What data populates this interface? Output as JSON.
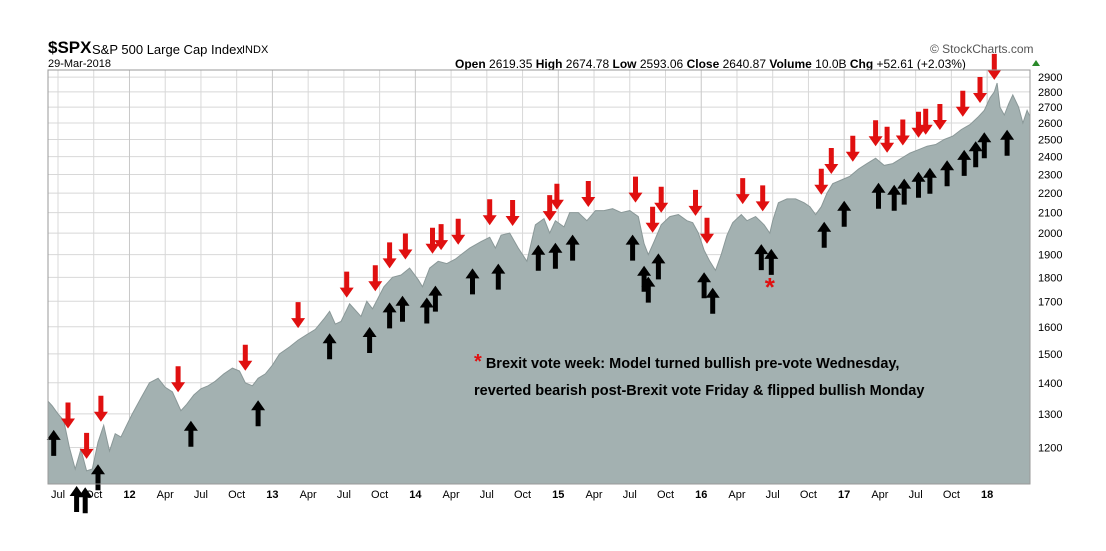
{
  "header": {
    "ticker": "$SPX",
    "name": "S&P 500 Large Cap Index",
    "exchange": "INDX",
    "date": "29-Mar-2018",
    "brand": "© StockCharts.com",
    "ohlc": {
      "open_label": "Open",
      "open": "2619.35",
      "high_label": "High",
      "high": "2674.78",
      "low_label": "Low",
      "low": "2593.06",
      "close_label": "Close",
      "close": "2640.87",
      "volume_label": "Volume",
      "volume": "10.0B",
      "chg_label": "Chg",
      "chg": "+52.61 (+2.03%)"
    }
  },
  "annotation": {
    "marker": "*",
    "line1": "Brexit vote week: Model turned bullish pre-vote Wednesday,",
    "line2": "reverted bearish post-Brexit vote Friday & flipped bullish Monday",
    "marker_date": 2016.48
  },
  "colors": {
    "area": "#a3b1b1",
    "area_line": "#8a9898",
    "sell_arrow": "#e01010",
    "buy_arrow": "#000000",
    "grid": "#d8d8d8",
    "asterisk": "#e01010"
  },
  "chart_data": {
    "type": "area",
    "title": "$SPX S&P 500 Large Cap Index INDX",
    "y_scale": "log",
    "ylim": [
      1100,
      2950
    ],
    "xlim": [
      2011.43,
      2018.3
    ],
    "grid": true,
    "y_ticks": [
      "1200",
      "1300",
      "1400",
      "1500",
      "1600",
      "1700",
      "1800",
      "1900",
      "2000",
      "2100",
      "2200",
      "2300",
      "2400",
      "2500",
      "2600",
      "2700",
      "2800",
      "2900"
    ],
    "x_ticks": [
      {
        "label": "Jul",
        "x": 2011.5
      },
      {
        "label": "Oct",
        "x": 2011.75
      },
      {
        "label": "12",
        "x": 2012.0
      },
      {
        "label": "Apr",
        "x": 2012.25
      },
      {
        "label": "Jul",
        "x": 2012.5
      },
      {
        "label": "Oct",
        "x": 2012.75
      },
      {
        "label": "13",
        "x": 2013.0
      },
      {
        "label": "Apr",
        "x": 2013.25
      },
      {
        "label": "Jul",
        "x": 2013.5
      },
      {
        "label": "Oct",
        "x": 2013.75
      },
      {
        "label": "14",
        "x": 2014.0
      },
      {
        "label": "Apr",
        "x": 2014.25
      },
      {
        "label": "Jul",
        "x": 2014.5
      },
      {
        "label": "Oct",
        "x": 2014.75
      },
      {
        "label": "15",
        "x": 2015.0
      },
      {
        "label": "Apr",
        "x": 2015.25
      },
      {
        "label": "Jul",
        "x": 2015.5
      },
      {
        "label": "Oct",
        "x": 2015.75
      },
      {
        "label": "16",
        "x": 2016.0
      },
      {
        "label": "Apr",
        "x": 2016.25
      },
      {
        "label": "Jul",
        "x": 2016.5
      },
      {
        "label": "Oct",
        "x": 2016.75
      },
      {
        "label": "17",
        "x": 2017.0
      },
      {
        "label": "Apr",
        "x": 2017.25
      },
      {
        "label": "Jul",
        "x": 2017.5
      },
      {
        "label": "Oct",
        "x": 2017.75
      },
      {
        "label": "18",
        "x": 2018.0
      }
    ],
    "bold_x_ticks": [
      "12",
      "13",
      "14",
      "15",
      "16",
      "17",
      "18"
    ],
    "series": [
      {
        "x": [
          2011.43,
          2011.46,
          2011.5,
          2011.54,
          2011.58,
          2011.62,
          2011.66,
          2011.7,
          2011.74,
          2011.78,
          2011.82,
          2011.86,
          2011.9,
          2011.94,
          2011.98,
          2012.02,
          2012.08,
          2012.14,
          2012.2,
          2012.25,
          2012.3,
          2012.36,
          2012.4,
          2012.45,
          2012.5,
          2012.55,
          2012.6,
          2012.66,
          2012.72,
          2012.77,
          2012.81,
          2012.86,
          2012.9,
          2012.95,
          2013.0,
          2013.05,
          2013.12,
          2013.18,
          2013.24,
          2013.3,
          2013.36,
          2013.4,
          2013.44,
          2013.48,
          2013.54,
          2013.62,
          2013.66,
          2013.7,
          2013.78,
          2013.84,
          2013.9,
          2013.96,
          2014.02,
          2014.05,
          2014.1,
          2014.16,
          2014.22,
          2014.28,
          2014.32,
          2014.38,
          2014.46,
          2014.52,
          2014.56,
          2014.6,
          2014.66,
          2014.72,
          2014.78,
          2014.84,
          2014.9,
          2014.94,
          2014.98,
          2015.04,
          2015.08,
          2015.14,
          2015.2,
          2015.26,
          2015.32,
          2015.38,
          2015.44,
          2015.5,
          2015.56,
          2015.6,
          2015.63,
          2015.67,
          2015.72,
          2015.78,
          2015.84,
          2015.9,
          2015.94,
          2015.98,
          2016.02,
          2016.06,
          2016.1,
          2016.14,
          2016.18,
          2016.22,
          2016.28,
          2016.32,
          2016.38,
          2016.44,
          2016.48,
          2016.5,
          2016.54,
          2016.6,
          2016.66,
          2016.72,
          2016.76,
          2016.8,
          2016.84,
          2016.88,
          2016.92,
          2016.98,
          2017.04,
          2017.1,
          2017.16,
          2017.22,
          2017.28,
          2017.34,
          2017.4,
          2017.46,
          2017.52,
          2017.58,
          2017.64,
          2017.7,
          2017.76,
          2017.82,
          2017.88,
          2017.94,
          2017.98,
          2018.02,
          2018.05,
          2018.07,
          2018.09,
          2018.12,
          2018.15,
          2018.18,
          2018.22,
          2018.25,
          2018.28,
          2018.3
        ],
        "values": [
          1340,
          1325,
          1300,
          1280,
          1200,
          1140,
          1195,
          1135,
          1140,
          1215,
          1265,
          1190,
          1240,
          1230,
          1265,
          1300,
          1350,
          1400,
          1415,
          1385,
          1370,
          1310,
          1330,
          1360,
          1380,
          1390,
          1405,
          1430,
          1450,
          1440,
          1400,
          1390,
          1415,
          1430,
          1460,
          1500,
          1525,
          1550,
          1570,
          1590,
          1630,
          1660,
          1610,
          1620,
          1690,
          1640,
          1700,
          1670,
          1760,
          1800,
          1810,
          1840,
          1790,
          1760,
          1840,
          1870,
          1860,
          1880,
          1900,
          1930,
          1960,
          1980,
          1930,
          1990,
          2000,
          1930,
          1870,
          2040,
          2070,
          2000,
          2060,
          2030,
          2100,
          2100,
          2060,
          2110,
          2110,
          2120,
          2100,
          2110,
          2080,
          1950,
          1900,
          1960,
          2040,
          2080,
          2090,
          2060,
          2050,
          2000,
          1920,
          1870,
          1830,
          1900,
          1990,
          2050,
          2090,
          2060,
          2080,
          2040,
          2000,
          2060,
          2150,
          2170,
          2170,
          2150,
          2130,
          2090,
          2130,
          2200,
          2250,
          2270,
          2290,
          2330,
          2360,
          2390,
          2350,
          2360,
          2390,
          2420,
          2440,
          2460,
          2470,
          2500,
          2520,
          2560,
          2590,
          2640,
          2680,
          2760,
          2800,
          2860,
          2700,
          2650,
          2720,
          2780,
          2700,
          2600,
          2680,
          2640
        ]
      }
    ],
    "sell_signals": [
      2011.57,
      2011.7,
      2011.8,
      2012.34,
      2012.81,
      2013.18,
      2013.52,
      2013.72,
      2013.82,
      2013.93,
      2014.12,
      2014.18,
      2014.3,
      2014.52,
      2014.68,
      2014.94,
      2014.99,
      2015.21,
      2015.54,
      2015.66,
      2015.72,
      2015.96,
      2016.04,
      2016.29,
      2016.43,
      2016.84,
      2016.91,
      2017.06,
      2017.22,
      2017.3,
      2017.41,
      2017.52,
      2017.57,
      2017.67,
      2017.83,
      2017.95,
      2018.05
    ],
    "buy_signals": [
      2011.47,
      2011.63,
      2011.69,
      2011.78,
      2012.43,
      2012.9,
      2013.4,
      2013.68,
      2013.82,
      2013.91,
      2014.08,
      2014.14,
      2014.4,
      2014.58,
      2014.86,
      2014.98,
      2015.1,
      2015.52,
      2015.6,
      2015.63,
      2015.7,
      2016.02,
      2016.08,
      2016.42,
      2016.49,
      2016.86,
      2017.0,
      2017.24,
      2017.35,
      2017.42,
      2017.52,
      2017.6,
      2017.72,
      2017.84,
      2017.92,
      2017.98,
      2018.14
    ]
  }
}
